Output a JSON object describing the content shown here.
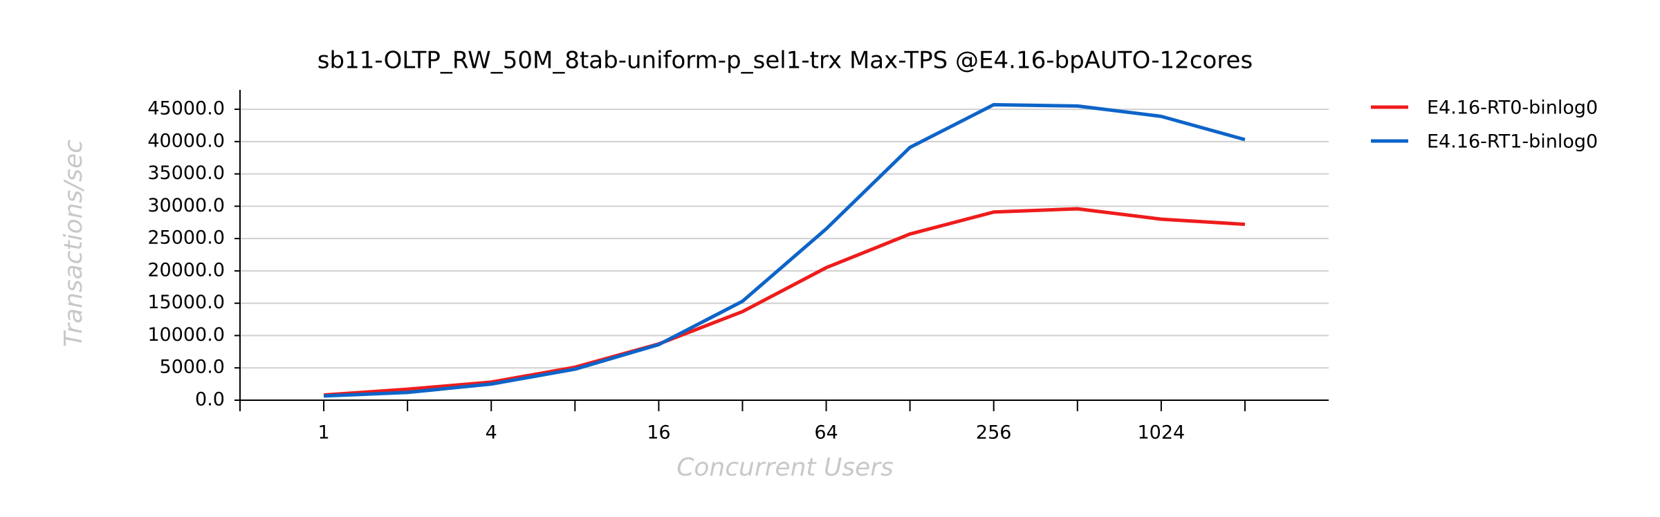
{
  "chart_data": {
    "type": "line",
    "title": "sb11-OLTP_RW_50M_8tab-uniform-p_sel1-trx Max-TPS @E4.16-bpAUTO-12cores",
    "x_label": "Concurrent Users",
    "y_label": "Transactions/sec",
    "x": [
      1,
      2,
      4,
      8,
      16,
      32,
      64,
      128,
      256,
      512,
      1024,
      2048
    ],
    "x_log_base": 2,
    "xlim": [
      0.5,
      4096
    ],
    "xticks": [
      1,
      4,
      16,
      64,
      256,
      1024
    ],
    "xticks_minor": [
      0.5,
      2,
      8,
      32,
      128,
      512,
      2048
    ],
    "ylim": [
      0,
      48000
    ],
    "yticks": [
      {
        "value": 0,
        "label": "0.0"
      },
      {
        "value": 5000,
        "label": "5000.0"
      },
      {
        "value": 10000,
        "label": "10000.0"
      },
      {
        "value": 15000,
        "label": "15000.0"
      },
      {
        "value": 20000,
        "label": "20000.0"
      },
      {
        "value": 25000,
        "label": "25000.0"
      },
      {
        "value": 30000,
        "label": "30000.0"
      },
      {
        "value": 35000,
        "label": "35000.0"
      },
      {
        "value": 40000,
        "label": "40000.0"
      },
      {
        "value": 45000,
        "label": "45000.0"
      }
    ],
    "grid": true,
    "legend": "right",
    "series": [
      {
        "name": "E4.16-RT0-binlog0",
        "color": "#ee1c1c",
        "values": [
          800,
          1700,
          2800,
          5100,
          8700,
          13700,
          20500,
          25700,
          29100,
          29600,
          28000,
          27200
        ]
      },
      {
        "name": "E4.16-RT1-binlog0",
        "color": "#0d64c8",
        "values": [
          650,
          1200,
          2500,
          4800,
          8600,
          15300,
          26500,
          39100,
          45700,
          45500,
          43900,
          40300
        ]
      }
    ]
  }
}
